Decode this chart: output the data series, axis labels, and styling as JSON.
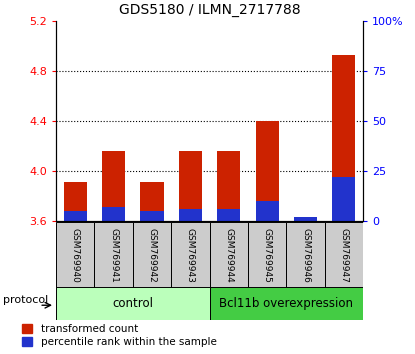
{
  "title": "GDS5180 / ILMN_2717788",
  "categories": [
    "GSM769940",
    "GSM769941",
    "GSM769942",
    "GSM769943",
    "GSM769944",
    "GSM769945",
    "GSM769946",
    "GSM769947"
  ],
  "transformed_counts": [
    3.91,
    4.16,
    3.91,
    4.16,
    4.16,
    4.4,
    3.63,
    4.93
  ],
  "percentile_ranks": [
    5,
    7,
    5,
    6,
    6,
    10,
    2,
    22
  ],
  "ylim_left": [
    3.6,
    5.2
  ],
  "ylim_right": [
    0,
    100
  ],
  "yticks_left": [
    3.6,
    4.0,
    4.4,
    4.8,
    5.2
  ],
  "yticks_right": [
    0,
    25,
    50,
    75,
    100
  ],
  "ytick_labels_right": [
    "0",
    "25",
    "50",
    "75",
    "100%"
  ],
  "control_label": "control",
  "overexpression_label": "Bcl11b overexpression",
  "protocol_label": "protocol",
  "legend_red": "transformed count",
  "legend_blue": "percentile rank within the sample",
  "bar_color_red": "#cc2200",
  "bar_color_blue": "#2233cc",
  "control_bg": "#bbffbb",
  "overexpression_bg": "#44cc44",
  "sample_bg": "#cccccc",
  "base_value": 3.6
}
